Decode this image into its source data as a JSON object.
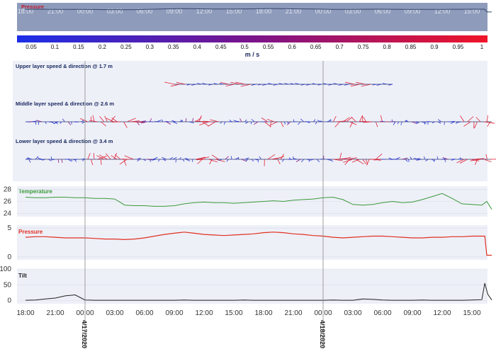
{
  "chart_data": {
    "time_ticks": [
      "18:00",
      "21:00",
      "00:00",
      "03:00",
      "06:00",
      "09:00",
      "12:00",
      "15:00",
      "18:00",
      "21:00",
      "00:00",
      "03:00",
      "06:00",
      "09:00",
      "12:00",
      "15:00"
    ],
    "date_markers": [
      "4/17/2020",
      "4/18/2020"
    ],
    "colorbar": {
      "ticks": [
        "0.05",
        "0.1",
        "0.15",
        "0.2",
        "0.25",
        "0.3",
        "0.35",
        "0.4",
        "0.45",
        "0.5",
        "0.55",
        "0.6",
        "0.65",
        "0.7",
        "0.75",
        "0.8",
        "0.85",
        "0.9",
        "0.95",
        "1"
      ],
      "unit": "m / s",
      "colors": [
        "#1b2fe8",
        "#7a138a",
        "#f01428"
      ]
    },
    "overview": {
      "label": "Pressure",
      "color": "#c0182a"
    },
    "current_panels": [
      {
        "label": "Upper layer speed & direction @ 1.7 m",
        "start": 15,
        "end": 37
      },
      {
        "label": "Middle layer speed & direction @ 2.6 m",
        "start": 0,
        "end": 47
      },
      {
        "label": "Lower layer speed & direction @ 3.4 m",
        "start": 0,
        "end": 47
      }
    ],
    "temperature": {
      "label": "Temperature",
      "color": "#3a9a3a",
      "ylim": [
        23.5,
        28.5
      ],
      "yticks": [
        "28",
        "26",
        "24"
      ],
      "x": [
        0,
        1,
        2,
        3,
        4,
        5,
        6,
        7,
        8,
        9,
        10,
        11,
        12,
        13,
        14,
        15,
        16,
        17,
        18,
        19,
        20,
        21,
        22,
        23,
        24,
        25,
        26,
        27,
        28,
        29,
        30,
        31,
        32,
        33,
        34,
        35,
        36,
        37,
        38,
        39,
        40,
        41,
        42,
        43,
        44,
        45,
        46,
        46.5,
        47
      ],
      "y": [
        26.7,
        26.6,
        26.6,
        26.7,
        26.7,
        26.6,
        26.6,
        26.5,
        26.5,
        26.4,
        25.4,
        25.3,
        25.3,
        25.2,
        25.2,
        25.3,
        25.6,
        25.8,
        25.9,
        25.8,
        25.8,
        25.7,
        25.8,
        25.9,
        26.0,
        26.1,
        26.0,
        26.2,
        26.3,
        26.4,
        26.6,
        26.7,
        26.3,
        25.5,
        25.4,
        25.5,
        25.8,
        26.0,
        25.8,
        25.9,
        26.3,
        26.8,
        27.3,
        26.5,
        25.6,
        25.5,
        25.4,
        26.0,
        24.7
      ]
    },
    "pressure": {
      "label": "Pressure",
      "color": "#e03020",
      "ylim": [
        -0.5,
        5.5
      ],
      "yticks": [
        "5",
        "0"
      ],
      "x": [
        0,
        1,
        2,
        3,
        4,
        5,
        6,
        7,
        8,
        9,
        10,
        11,
        12,
        13,
        14,
        15,
        16,
        17,
        18,
        19,
        20,
        21,
        22,
        23,
        24,
        25,
        26,
        27,
        28,
        29,
        30,
        31,
        32,
        33,
        34,
        35,
        36,
        37,
        38,
        39,
        40,
        41,
        42,
        43,
        44,
        45,
        46,
        46.3,
        46.5,
        47
      ],
      "y": [
        3.4,
        3.5,
        3.5,
        3.4,
        3.3,
        3.3,
        3.3,
        3.2,
        3.1,
        3.1,
        3.0,
        3.1,
        3.3,
        3.6,
        3.9,
        4.1,
        4.3,
        4.1,
        3.9,
        3.8,
        3.7,
        3.8,
        3.9,
        4.0,
        4.2,
        4.3,
        4.2,
        4.0,
        3.9,
        3.7,
        3.6,
        3.4,
        3.3,
        3.4,
        3.5,
        3.6,
        3.6,
        3.5,
        3.4,
        3.3,
        3.3,
        3.4,
        3.4,
        3.5,
        3.5,
        3.6,
        3.6,
        3.6,
        0.3,
        0.3
      ]
    },
    "tilt": {
      "label": "Tilt",
      "color": "#222222",
      "ylim": [
        -10,
        100
      ],
      "yticks": [
        "100",
        "50",
        "0"
      ],
      "x": [
        0,
        1,
        2,
        3,
        4,
        5,
        6,
        7,
        8,
        9,
        10,
        11,
        12,
        13,
        14,
        15,
        16,
        17,
        18,
        19,
        20,
        21,
        22,
        23,
        24,
        25,
        26,
        27,
        28,
        29,
        30,
        31,
        32,
        33,
        34,
        35,
        36,
        37,
        38,
        39,
        40,
        41,
        42,
        43,
        44,
        45,
        46,
        46.3,
        46.6,
        47
      ],
      "y": [
        1,
        2,
        5,
        8,
        15,
        18,
        2,
        1,
        1,
        1,
        1,
        1,
        1,
        1,
        1,
        1,
        2,
        1,
        1,
        1,
        1,
        1,
        2,
        1,
        1,
        1,
        1,
        1,
        1,
        1,
        1,
        2,
        1,
        1,
        5,
        4,
        2,
        1,
        1,
        1,
        2,
        1,
        1,
        1,
        1,
        2,
        3,
        55,
        20,
        2
      ]
    }
  }
}
